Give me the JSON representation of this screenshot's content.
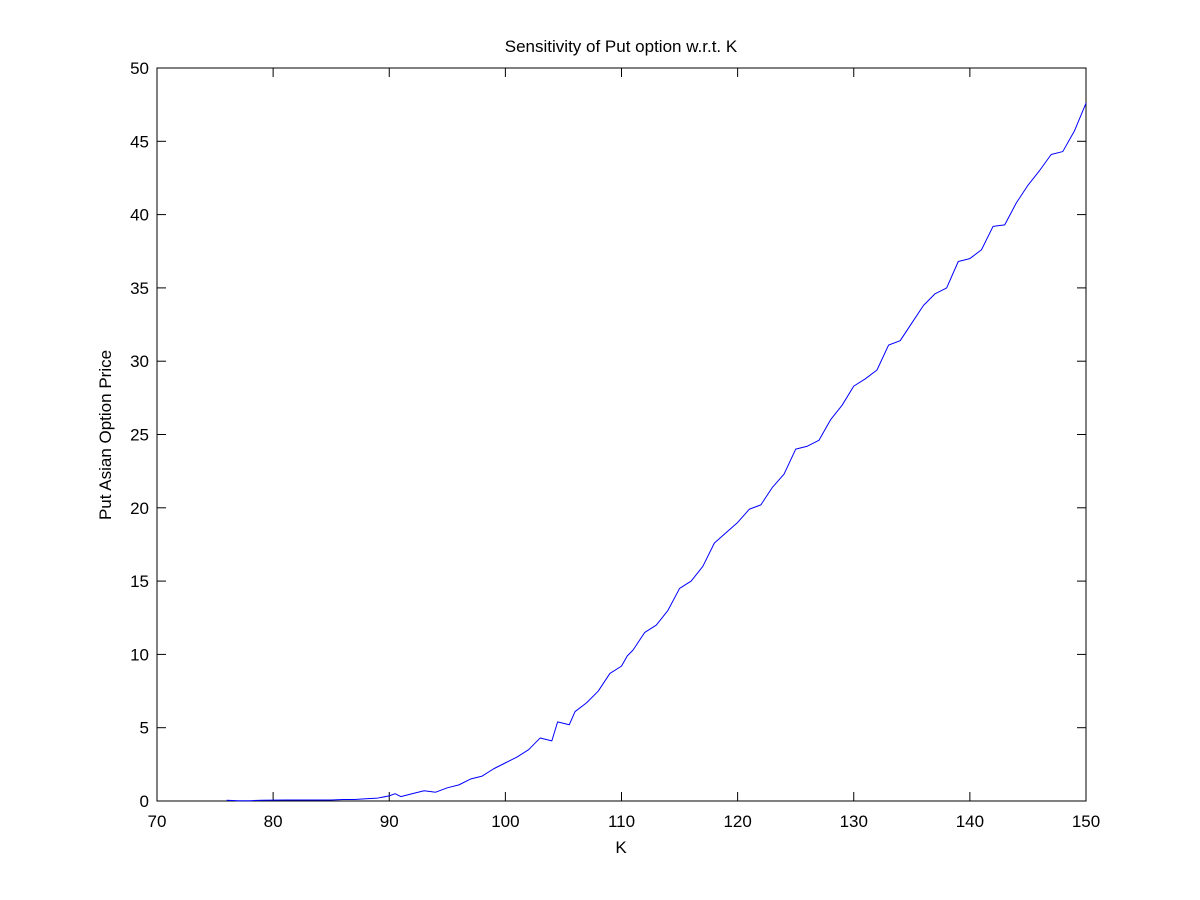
{
  "chart_data": {
    "type": "line",
    "title": "Sensitivity of Put option w.r.t. K",
    "xlabel": "K",
    "ylabel": "Put Asian Option Price",
    "xlim": [
      70,
      150
    ],
    "ylim": [
      0,
      50
    ],
    "xticks": [
      "70",
      "80",
      "90",
      "100",
      "110",
      "120",
      "130",
      "140",
      "150"
    ],
    "yticks": [
      "0",
      "5",
      "10",
      "15",
      "20",
      "25",
      "30",
      "35",
      "40",
      "45",
      "50"
    ],
    "grid": false,
    "legend": "none",
    "series": [
      {
        "color": "#0000ff",
        "x": [
          76,
          77,
          78,
          79,
          80,
          81,
          82,
          83,
          84,
          85,
          86,
          87,
          88,
          89,
          90,
          90.5,
          91,
          92,
          93,
          94,
          95,
          96,
          97,
          98,
          99,
          100,
          101,
          102,
          103,
          104,
          104.5,
          105.5,
          106,
          107,
          108,
          109,
          110,
          110.5,
          111,
          112,
          113,
          114,
          115,
          116,
          117,
          118,
          119,
          120,
          121,
          122,
          123,
          124,
          125,
          126,
          127,
          128,
          129,
          130,
          131,
          132,
          133,
          134,
          135,
          136,
          137,
          138,
          139,
          140,
          141,
          142,
          143,
          144,
          145,
          146,
          147,
          148,
          149,
          150
        ],
        "y": [
          0.05,
          0.02,
          0.02,
          0.05,
          0.06,
          0.07,
          0.07,
          0.07,
          0.07,
          0.07,
          0.1,
          0.1,
          0.15,
          0.2,
          0.35,
          0.5,
          0.3,
          0.5,
          0.7,
          0.6,
          0.9,
          1.1,
          1.5,
          1.7,
          2.2,
          2.6,
          3.0,
          3.5,
          4.3,
          4.1,
          5.4,
          5.2,
          6.1,
          6.7,
          7.5,
          8.7,
          9.2,
          9.9,
          10.3,
          11.5,
          12.0,
          13.0,
          14.5,
          15.0,
          16.0,
          17.6,
          18.3,
          19.0,
          19.9,
          20.2,
          21.4,
          22.3,
          24.0,
          24.2,
          24.6,
          26.0,
          27.0,
          28.3,
          28.8,
          29.4,
          31.1,
          31.4,
          32.6,
          33.8,
          34.6,
          35.0,
          36.8,
          37.0,
          37.6,
          39.2,
          39.3,
          40.8,
          42.0,
          43.0,
          44.1,
          44.3,
          45.7,
          47.6
        ]
      }
    ]
  }
}
